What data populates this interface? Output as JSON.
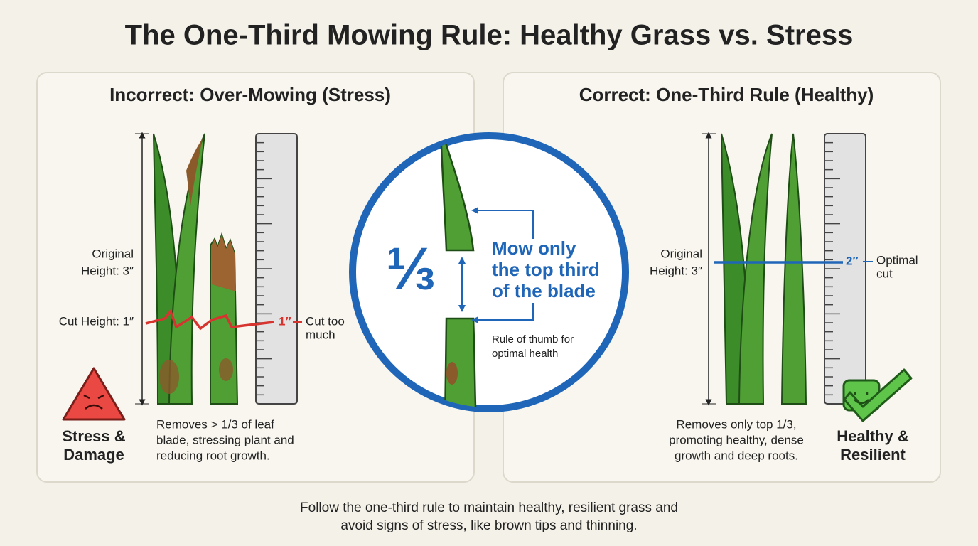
{
  "header": {
    "title": "The One-Third Mowing Rule: Healthy Grass vs. Stress"
  },
  "left": {
    "heading": "Incorrect: Over-Mowing (Stress)",
    "original_height": [
      "Original",
      "Height: 3″"
    ],
    "cut_height": "Cut Height: 1″",
    "ruler_value": "1″",
    "note": [
      "Cut too",
      "much"
    ],
    "badge": [
      "Stress &",
      "Damage"
    ],
    "description": [
      "Removes > 1/3 of leaf",
      "blade, stressing plant and",
      "reducing root growth."
    ]
  },
  "center": {
    "fraction": "⅓",
    "rule": [
      "Mow only",
      "the top third",
      "of the blade"
    ],
    "caption": [
      "Rule of thumb for",
      "optimal health"
    ]
  },
  "right": {
    "heading": "Correct: One-Third Rule (Healthy)",
    "original_height": [
      "Original",
      "Height: 3″"
    ],
    "ruler_value": "2″",
    "note": [
      "Optimal",
      "cut"
    ],
    "badge": [
      "Healthy &",
      "Resilient"
    ],
    "description": [
      "Removes only top 1/3,",
      "promoting healthy, dense",
      "growth and deep roots."
    ]
  },
  "footer": [
    "Follow the one-third rule to maintain healthy, resilient grass and",
    "avoid signs of stress, like brown tips and thinning."
  ]
}
